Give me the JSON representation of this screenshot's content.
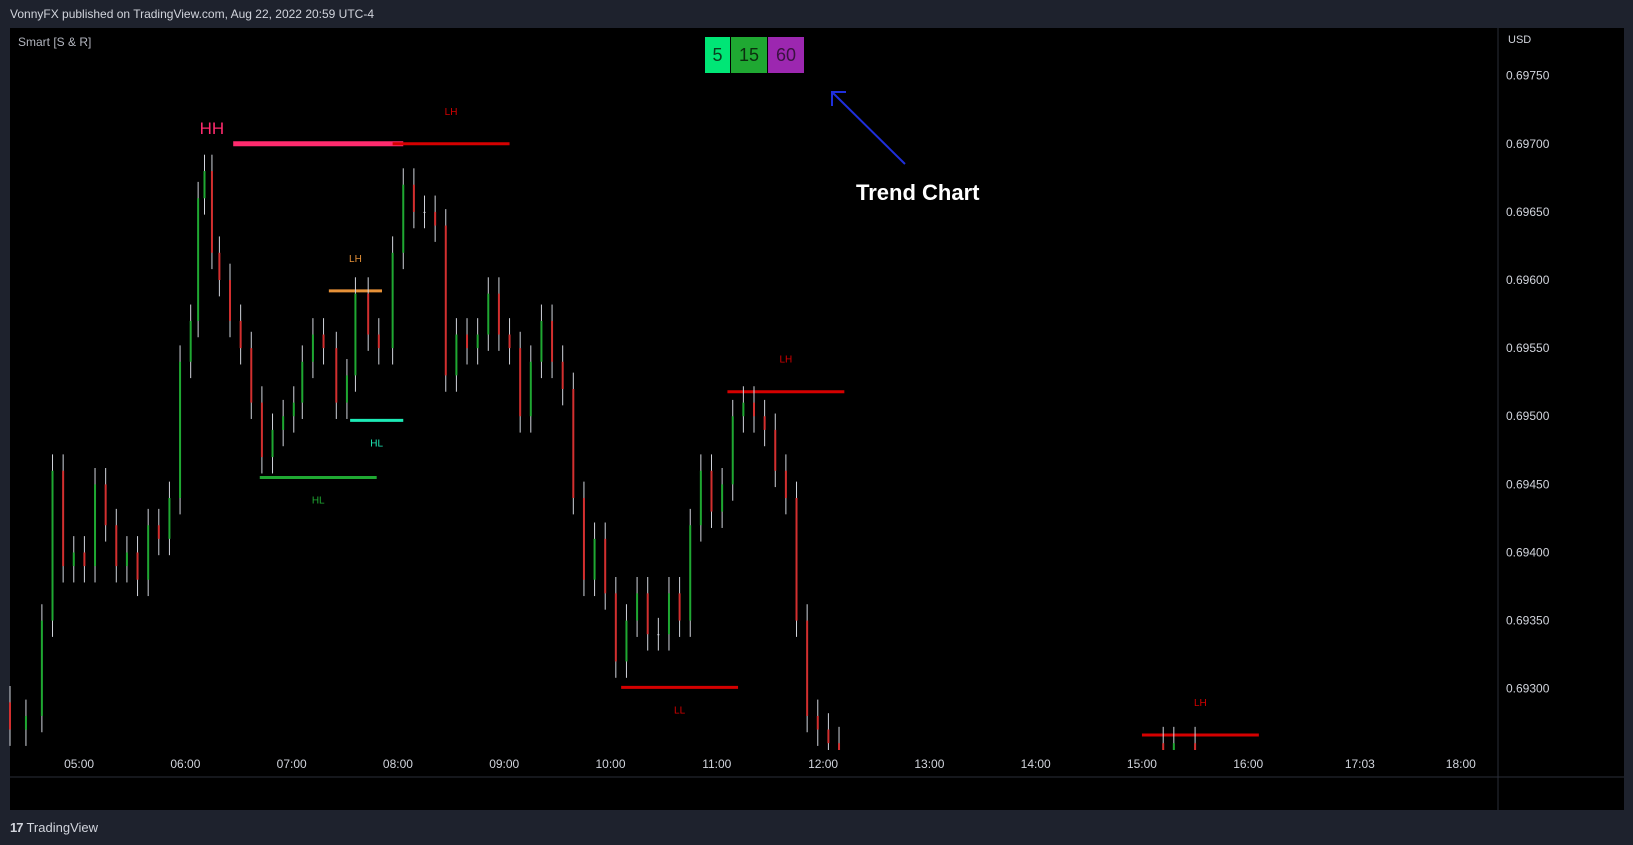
{
  "header": {
    "publisher": "VonnyFX published on TradingView.com, Aug 22, 2022 20:59 UTC-4"
  },
  "indicator": {
    "name": "Smart [S & R]"
  },
  "footer": {
    "brand": "TradingView"
  },
  "trend_chart": {
    "label": "Trend Chart",
    "boxes": [
      {
        "label": "5",
        "color": "#00e676",
        "text_color": "#0b3d1f"
      },
      {
        "label": "15",
        "color": "#1fa832",
        "text_color": "#0c2e0f"
      },
      {
        "label": "60",
        "color": "#9c27b0",
        "text_color": "#3a1240"
      }
    ],
    "arrow_color": "#1f2fdc"
  },
  "chart_data": {
    "type": "candlestick",
    "title": "",
    "currency": "USD",
    "y_ticks": [
      "0.69750",
      "0.69700",
      "0.69650",
      "0.69600",
      "0.69550",
      "0.69500",
      "0.69450",
      "0.69400",
      "0.69350",
      "0.69300"
    ],
    "y_tick_values": [
      0.6975,
      0.697,
      0.6965,
      0.696,
      0.6955,
      0.695,
      0.6945,
      0.694,
      0.6935,
      0.693
    ],
    "ylim": [
      0.69255,
      0.69785
    ],
    "x_ticks": [
      "05:00",
      "06:00",
      "07:00",
      "08:00",
      "09:00",
      "10:00",
      "11:00",
      "12:00",
      "13:00",
      "14:00",
      "15:00",
      "16:00",
      "17:03",
      "18:00"
    ],
    "x_tick_hours": [
      5,
      6,
      7,
      8,
      9,
      10,
      11,
      12,
      13,
      14,
      15,
      16,
      17.05,
      18
    ],
    "xlim": [
      4.35,
      18.35
    ],
    "colors": {
      "up": "#1fa832",
      "down": "#d32f2f",
      "neutral": "#d1d4dc"
    },
    "candles": [
      {
        "t": 4.35,
        "o": 0.6929,
        "c": 0.6927
      },
      {
        "t": 4.5,
        "o": 0.6927,
        "c": 0.6928
      },
      {
        "t": 4.65,
        "o": 0.6928,
        "c": 0.6935
      },
      {
        "t": 4.75,
        "o": 0.6935,
        "c": 0.6946
      },
      {
        "t": 4.85,
        "o": 0.6946,
        "c": 0.6939
      },
      {
        "t": 4.95,
        "o": 0.6939,
        "c": 0.694
      },
      {
        "t": 5.05,
        "o": 0.694,
        "c": 0.6939
      },
      {
        "t": 5.15,
        "o": 0.6939,
        "c": 0.6945
      },
      {
        "t": 5.25,
        "o": 0.6945,
        "c": 0.6942
      },
      {
        "t": 5.35,
        "o": 0.6942,
        "c": 0.6939
      },
      {
        "t": 5.45,
        "o": 0.6939,
        "c": 0.694
      },
      {
        "t": 5.55,
        "o": 0.694,
        "c": 0.6938
      },
      {
        "t": 5.65,
        "o": 0.6938,
        "c": 0.6942
      },
      {
        "t": 5.75,
        "o": 0.6942,
        "c": 0.6941
      },
      {
        "t": 5.85,
        "o": 0.6941,
        "c": 0.6944
      },
      {
        "t": 5.95,
        "o": 0.6944,
        "c": 0.6954
      },
      {
        "t": 6.05,
        "o": 0.6954,
        "c": 0.6957
      },
      {
        "t": 6.12,
        "o": 0.6957,
        "c": 0.6966
      },
      {
        "t": 6.18,
        "o": 0.6966,
        "c": 0.6968
      },
      {
        "t": 6.25,
        "o": 0.6968,
        "c": 0.6962
      },
      {
        "t": 6.32,
        "o": 0.6962,
        "c": 0.696
      },
      {
        "t": 6.42,
        "o": 0.696,
        "c": 0.6957
      },
      {
        "t": 6.52,
        "o": 0.6957,
        "c": 0.6955
      },
      {
        "t": 6.62,
        "o": 0.6955,
        "c": 0.6951
      },
      {
        "t": 6.72,
        "o": 0.6951,
        "c": 0.6947
      },
      {
        "t": 6.82,
        "o": 0.6947,
        "c": 0.6949
      },
      {
        "t": 6.92,
        "o": 0.6949,
        "c": 0.695
      },
      {
        "t": 7.02,
        "o": 0.695,
        "c": 0.6951
      },
      {
        "t": 7.1,
        "o": 0.6951,
        "c": 0.6954
      },
      {
        "t": 7.2,
        "o": 0.6954,
        "c": 0.6956
      },
      {
        "t": 7.3,
        "o": 0.6956,
        "c": 0.6955
      },
      {
        "t": 7.42,
        "o": 0.6955,
        "c": 0.6951
      },
      {
        "t": 7.52,
        "o": 0.6951,
        "c": 0.6953
      },
      {
        "t": 7.6,
        "o": 0.6953,
        "c": 0.6959
      },
      {
        "t": 7.72,
        "o": 0.6959,
        "c": 0.6956
      },
      {
        "t": 7.82,
        "o": 0.6956,
        "c": 0.6955
      },
      {
        "t": 7.95,
        "o": 0.6955,
        "c": 0.6962
      },
      {
        "t": 8.05,
        "o": 0.6962,
        "c": 0.6967
      },
      {
        "t": 8.15,
        "o": 0.6967,
        "c": 0.6965
      },
      {
        "t": 8.25,
        "o": 0.6965,
        "c": 0.6965
      },
      {
        "t": 8.35,
        "o": 0.6965,
        "c": 0.6964
      },
      {
        "t": 8.45,
        "o": 0.6964,
        "c": 0.6953
      },
      {
        "t": 8.55,
        "o": 0.6953,
        "c": 0.6956
      },
      {
        "t": 8.65,
        "o": 0.6956,
        "c": 0.6955
      },
      {
        "t": 8.75,
        "o": 0.6955,
        "c": 0.6956
      },
      {
        "t": 8.85,
        "o": 0.6956,
        "c": 0.6959
      },
      {
        "t": 8.95,
        "o": 0.6959,
        "c": 0.6956
      },
      {
        "t": 9.05,
        "o": 0.6956,
        "c": 0.6955
      },
      {
        "t": 9.15,
        "o": 0.6955,
        "c": 0.695
      },
      {
        "t": 9.25,
        "o": 0.695,
        "c": 0.6954
      },
      {
        "t": 9.35,
        "o": 0.6954,
        "c": 0.6957
      },
      {
        "t": 9.45,
        "o": 0.6957,
        "c": 0.6954
      },
      {
        "t": 9.55,
        "o": 0.6954,
        "c": 0.6952
      },
      {
        "t": 9.65,
        "o": 0.6952,
        "c": 0.6944
      },
      {
        "t": 9.75,
        "o": 0.6944,
        "c": 0.6938
      },
      {
        "t": 9.85,
        "o": 0.6938,
        "c": 0.6941
      },
      {
        "t": 9.95,
        "o": 0.6941,
        "c": 0.6937
      },
      {
        "t": 10.05,
        "o": 0.6937,
        "c": 0.6932
      },
      {
        "t": 10.15,
        "o": 0.6932,
        "c": 0.6935
      },
      {
        "t": 10.25,
        "o": 0.6935,
        "c": 0.6937
      },
      {
        "t": 10.35,
        "o": 0.6937,
        "c": 0.6934
      },
      {
        "t": 10.45,
        "o": 0.6934,
        "c": 0.6934
      },
      {
        "t": 10.55,
        "o": 0.6934,
        "c": 0.6937
      },
      {
        "t": 10.65,
        "o": 0.6937,
        "c": 0.6935
      },
      {
        "t": 10.75,
        "o": 0.6935,
        "c": 0.6942
      },
      {
        "t": 10.85,
        "o": 0.6942,
        "c": 0.6946
      },
      {
        "t": 10.95,
        "o": 0.6946,
        "c": 0.6943
      },
      {
        "t": 11.05,
        "o": 0.6943,
        "c": 0.6945
      },
      {
        "t": 11.15,
        "o": 0.6945,
        "c": 0.695
      },
      {
        "t": 11.25,
        "o": 0.695,
        "c": 0.6951
      },
      {
        "t": 11.35,
        "o": 0.6951,
        "c": 0.695
      },
      {
        "t": 11.45,
        "o": 0.695,
        "c": 0.6949
      },
      {
        "t": 11.55,
        "o": 0.6949,
        "c": 0.6946
      },
      {
        "t": 11.65,
        "o": 0.6946,
        "c": 0.6944
      },
      {
        "t": 11.75,
        "o": 0.6944,
        "c": 0.6935
      },
      {
        "t": 11.85,
        "o": 0.6935,
        "c": 0.6928
      },
      {
        "t": 11.95,
        "o": 0.6928,
        "c": 0.6927
      },
      {
        "t": 12.05,
        "o": 0.6927,
        "c": 0.6926
      },
      {
        "t": 12.15,
        "o": 0.6926,
        "c": 0.6925
      },
      {
        "t": 15.2,
        "o": 0.6926,
        "c": 0.6925
      },
      {
        "t": 15.3,
        "o": 0.6925,
        "c": 0.6926
      },
      {
        "t": 15.5,
        "o": 0.6926,
        "c": 0.6925
      }
    ],
    "structure_levels": [
      {
        "label": "HH",
        "price": 0.697,
        "t_start": 6.45,
        "t_end": 8.05,
        "color": "#ff2b6e",
        "label_pos": "above",
        "label_t": 6.25,
        "label_size": "large"
      },
      {
        "label": "LH",
        "price": 0.697,
        "t_start": 7.95,
        "t_end": 9.05,
        "color": "#d50000",
        "label_pos": "above",
        "label_t": 8.5,
        "label_size": "small"
      },
      {
        "label": "LH",
        "price": 0.69592,
        "t_start": 7.35,
        "t_end": 7.85,
        "color": "#e69138",
        "label_pos": "above",
        "label_t": 7.6,
        "label_size": "small"
      },
      {
        "label": "HL",
        "price": 0.69497,
        "t_start": 7.55,
        "t_end": 8.05,
        "color": "#1de9b6",
        "label_pos": "below",
        "label_t": 7.8,
        "label_size": "small"
      },
      {
        "label": "HL",
        "price": 0.69455,
        "t_start": 6.7,
        "t_end": 7.8,
        "color": "#1fa832",
        "label_pos": "below",
        "label_t": 7.25,
        "label_size": "small"
      },
      {
        "label": "LL",
        "price": 0.69301,
        "t_start": 10.1,
        "t_end": 11.2,
        "color": "#d50000",
        "label_pos": "below",
        "label_t": 10.65,
        "label_size": "small"
      },
      {
        "label": "LH",
        "price": 0.69518,
        "t_start": 11.1,
        "t_end": 12.2,
        "color": "#d50000",
        "label_pos": "above",
        "label_t": 11.65,
        "label_size": "small"
      },
      {
        "label": "LH",
        "price": 0.69266,
        "t_start": 15.0,
        "t_end": 16.1,
        "color": "#d50000",
        "label_pos": "above",
        "label_t": 15.55,
        "label_size": "small"
      }
    ]
  }
}
